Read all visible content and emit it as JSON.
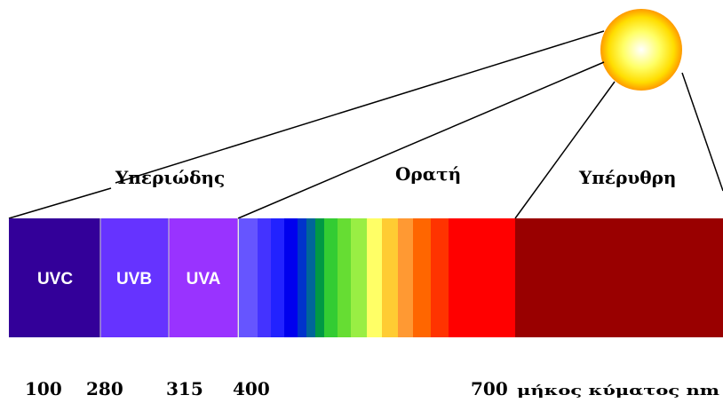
{
  "regions": [
    "Υπεριώδης",
    "Ορατή",
    "Υπέρυθρη"
  ],
  "bands": [
    "UVC",
    "UVB",
    "UVA"
  ],
  "wavelengths": [
    "100",
    "280",
    "315",
    "400",
    "700"
  ],
  "unit_label": "μήκος κύματος nm"
}
